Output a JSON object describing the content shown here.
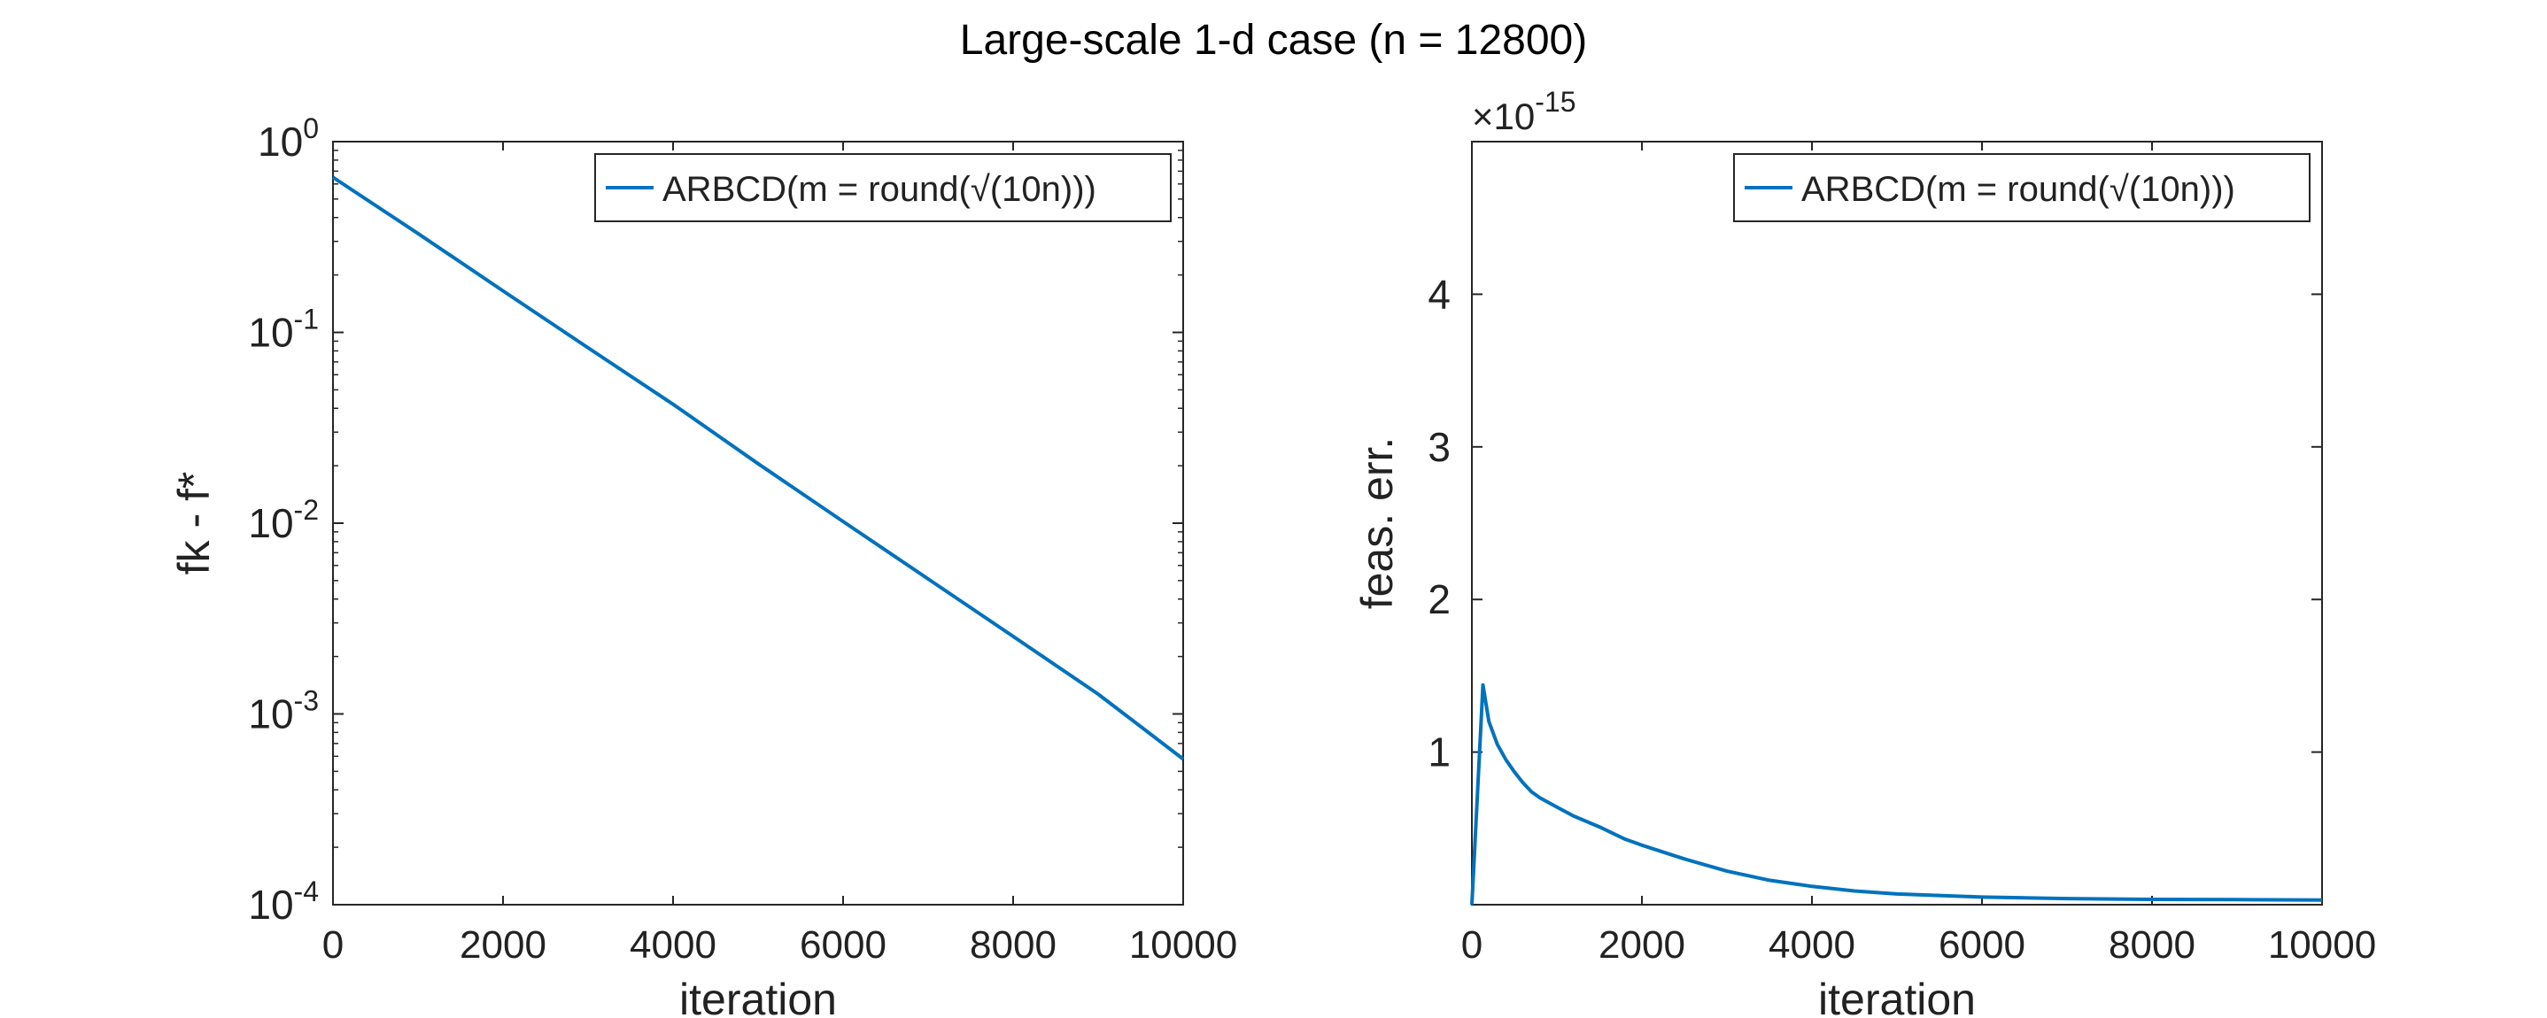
{
  "figure_title": "Large-scale 1-d case (n = 12800)",
  "colors": {
    "line": "#0072BD",
    "axes": "#262626",
    "background": "#ffffff"
  },
  "chart_data": [
    {
      "type": "line",
      "yscale": "log",
      "xlabel": "iteration",
      "ylabel": "fk - f*",
      "xlim": [
        0,
        10000
      ],
      "ylim": [
        0.0001,
        1
      ],
      "xticks": [
        0,
        2000,
        4000,
        6000,
        8000,
        10000
      ],
      "xtick_labels": [
        "0",
        "2000",
        "4000",
        "6000",
        "8000",
        "10000"
      ],
      "yticks": [
        0.0001,
        0.001,
        0.01,
        0.1,
        1
      ],
      "ytick_labels": [
        {
          "base": "10",
          "exp": "-4"
        },
        {
          "base": "10",
          "exp": "-3"
        },
        {
          "base": "10",
          "exp": "-2"
        },
        {
          "base": "10",
          "exp": "-1"
        },
        {
          "base": "10",
          "exp": "0"
        }
      ],
      "legend": {
        "label": "ARBCD(m = round(√(10n)))",
        "location": "top-right"
      },
      "series": [
        {
          "name": "ARBCD(m = round(√(10n)))",
          "x": [
            0,
            1000,
            2000,
            3000,
            4000,
            5000,
            6000,
            7000,
            8000,
            9000,
            10000
          ],
          "y": [
            0.65,
            0.33,
            0.165,
            0.083,
            0.042,
            0.0205,
            0.0102,
            0.0051,
            0.00255,
            0.00127,
            0.00058
          ]
        }
      ]
    },
    {
      "type": "line",
      "yscale": "linear",
      "xlabel": "iteration",
      "ylabel": "feas. err.",
      "exponent_label": {
        "prefix": "×10",
        "exp": "-15"
      },
      "xlim": [
        0,
        10000
      ],
      "ylim": [
        0,
        5
      ],
      "xticks": [
        0,
        2000,
        4000,
        6000,
        8000,
        10000
      ],
      "xtick_labels": [
        "0",
        "2000",
        "4000",
        "6000",
        "8000",
        "10000"
      ],
      "yticks": [
        1,
        2,
        3,
        4
      ],
      "ytick_labels": [
        "1",
        "2",
        "3",
        "4"
      ],
      "legend": {
        "label": "ARBCD(m = round(√(10n)))",
        "location": "top-right"
      },
      "series": [
        {
          "name": "ARBCD(m = round(√(10n)))",
          "x": [
            0,
            130,
            200,
            300,
            400,
            500,
            600,
            700,
            800,
            1000,
            1200,
            1500,
            1800,
            2000,
            2500,
            3000,
            3500,
            4000,
            4500,
            5000,
            6000,
            7000,
            8000,
            9000,
            10000
          ],
          "y": [
            0.0,
            1.44,
            1.2,
            1.05,
            0.95,
            0.87,
            0.8,
            0.74,
            0.7,
            0.64,
            0.58,
            0.51,
            0.43,
            0.39,
            0.3,
            0.22,
            0.16,
            0.12,
            0.09,
            0.07,
            0.05,
            0.04,
            0.035,
            0.033,
            0.03
          ]
        }
      ]
    }
  ]
}
